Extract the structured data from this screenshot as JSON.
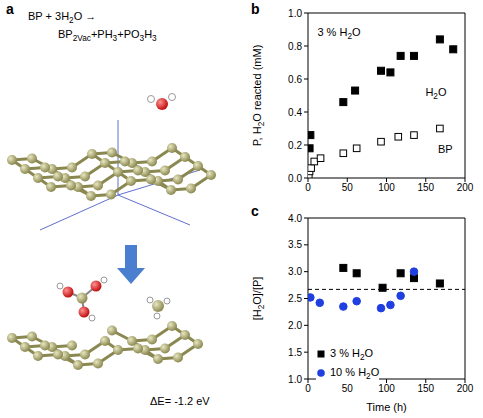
{
  "panel_a": {
    "label": "a",
    "reaction_left": "BP + 3H2O →",
    "reaction_right": "BP2Vac+PH3+PO3H3",
    "energy": "ΔE= -1.2 eV"
  },
  "chart_data": [
    {
      "label": "b",
      "type": "scatter",
      "xlim": [
        0,
        200
      ],
      "xticks": [
        0,
        50,
        100,
        150,
        200
      ],
      "ylim": [
        0,
        1
      ],
      "yticks": [
        {
          "value": 0,
          "label": "0.0"
        },
        0.2,
        0.4,
        0.6,
        0.8,
        {
          "value": 1,
          "label": "1.0"
        }
      ],
      "y_label": "P, H2O reacted (mM)",
      "series": [
        {
          "name": "H2O",
          "color": "#000000",
          "marker": "square",
          "name_at": [
            163,
            0.5
          ],
          "x": [
            1,
            2,
            3,
            45,
            60,
            93,
            105,
            118,
            135,
            168,
            185
          ],
          "values": [
            0.05,
            0.18,
            0.26,
            0.46,
            0.53,
            0.65,
            0.64,
            0.74,
            0.74,
            0.84,
            0.78
          ]
        },
        {
          "name": "BP",
          "color": "#000000",
          "marker": "open_square",
          "name_at": [
            175,
            0.15
          ],
          "x": [
            1,
            2,
            4,
            8,
            16,
            45,
            62,
            93,
            115,
            135,
            168
          ],
          "values": [
            0.02,
            0.04,
            0.06,
            0.1,
            0.12,
            0.15,
            0.18,
            0.22,
            0.25,
            0.26,
            0.3
          ]
        }
      ],
      "annotations": [
        {
          "text": "3 % H2O",
          "x": 12,
          "y": 0.86
        }
      ]
    },
    {
      "label": "c",
      "type": "scatter",
      "xlim": [
        0,
        200
      ],
      "xticks": [
        0,
        50,
        100,
        150,
        200
      ],
      "ylim": [
        1,
        4
      ],
      "yticks": [
        {
          "value": 1,
          "label": "1.0"
        },
        1.5,
        {
          "value": 2,
          "label": "2.0"
        },
        2.5,
        {
          "value": 3,
          "label": "3.0"
        },
        3.5,
        {
          "value": 4,
          "label": "4.0"
        }
      ],
      "x_label": "Time (h)",
      "y_label": "[H2O]/[P]",
      "legend": "lower left",
      "series": [
        {
          "name": "3 % H2O",
          "color": "#000000",
          "marker": "square",
          "x": [
            45,
            62,
            95,
            118,
            135,
            168
          ],
          "values": [
            3.07,
            2.97,
            2.7,
            2.97,
            2.88,
            2.78
          ]
        },
        {
          "name": "10 % H2O",
          "color": "#1f3fe0",
          "marker": "circle",
          "x": [
            3,
            15,
            45,
            62,
            93,
            105,
            118,
            135
          ],
          "values": [
            2.52,
            2.42,
            2.35,
            2.45,
            2.32,
            2.38,
            2.55,
            3.0
          ]
        }
      ],
      "reference_lines": [
        {
          "y": 2.67,
          "line_style": "dashed",
          "color": "#000000"
        }
      ]
    }
  ]
}
